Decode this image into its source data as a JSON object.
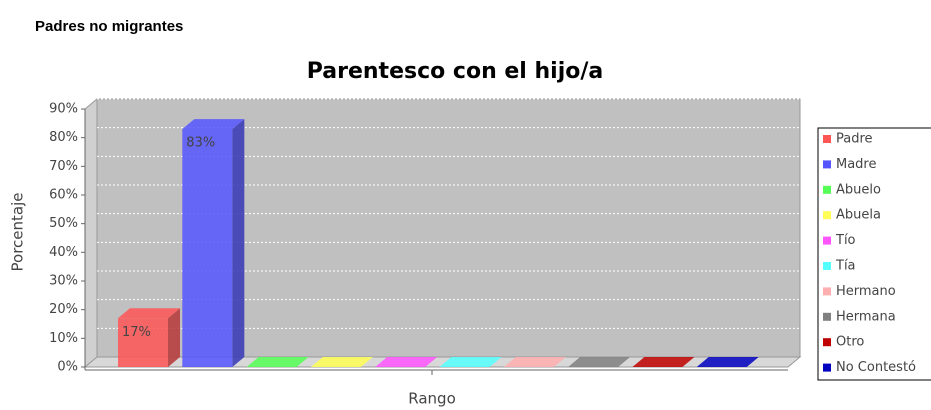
{
  "page_heading": "Padres no migrantes",
  "chart_data": {
    "type": "bar3d",
    "title": "Parentesco con el hijo/a",
    "y_label": "Porcentaje",
    "categories": [
      "Rango"
    ],
    "series": [
      {
        "name": "Padre",
        "color": "#ff5555",
        "values": [
          17
        ],
        "value_labels": [
          "17%"
        ]
      },
      {
        "name": "Madre",
        "color": "#5555ff",
        "values": [
          83
        ],
        "value_labels": [
          "83%"
        ]
      },
      {
        "name": "Abuelo",
        "color": "#55ff55",
        "values": [
          0
        ]
      },
      {
        "name": "Abuela",
        "color": "#ffff55",
        "values": [
          0
        ]
      },
      {
        "name": "Tío",
        "color": "#ff55ff",
        "values": [
          0
        ]
      },
      {
        "name": "Tía",
        "color": "#55ffff",
        "values": [
          0
        ]
      },
      {
        "name": "Hermano",
        "color": "#ffafaf",
        "values": [
          0
        ]
      },
      {
        "name": "Hermana",
        "color": "#808080",
        "values": [
          0
        ]
      },
      {
        "name": "Otro",
        "color": "#c00000",
        "values": [
          0
        ]
      },
      {
        "name": "No Contestó",
        "color": "#0000c0",
        "values": [
          0
        ]
      }
    ],
    "ylim": [
      0,
      90
    ],
    "yticks": [
      {
        "value": 0,
        "label": "0%"
      },
      {
        "value": 10,
        "label": "10%"
      },
      {
        "value": 20,
        "label": "20%"
      },
      {
        "value": 30,
        "label": "30%"
      },
      {
        "value": 40,
        "label": "40%"
      },
      {
        "value": 50,
        "label": "50%"
      },
      {
        "value": 60,
        "label": "60%"
      },
      {
        "value": 70,
        "label": "70%"
      },
      {
        "value": 80,
        "label": "80%"
      },
      {
        "value": 90,
        "label": "90%"
      }
    ],
    "grid": true,
    "legend": "right"
  }
}
